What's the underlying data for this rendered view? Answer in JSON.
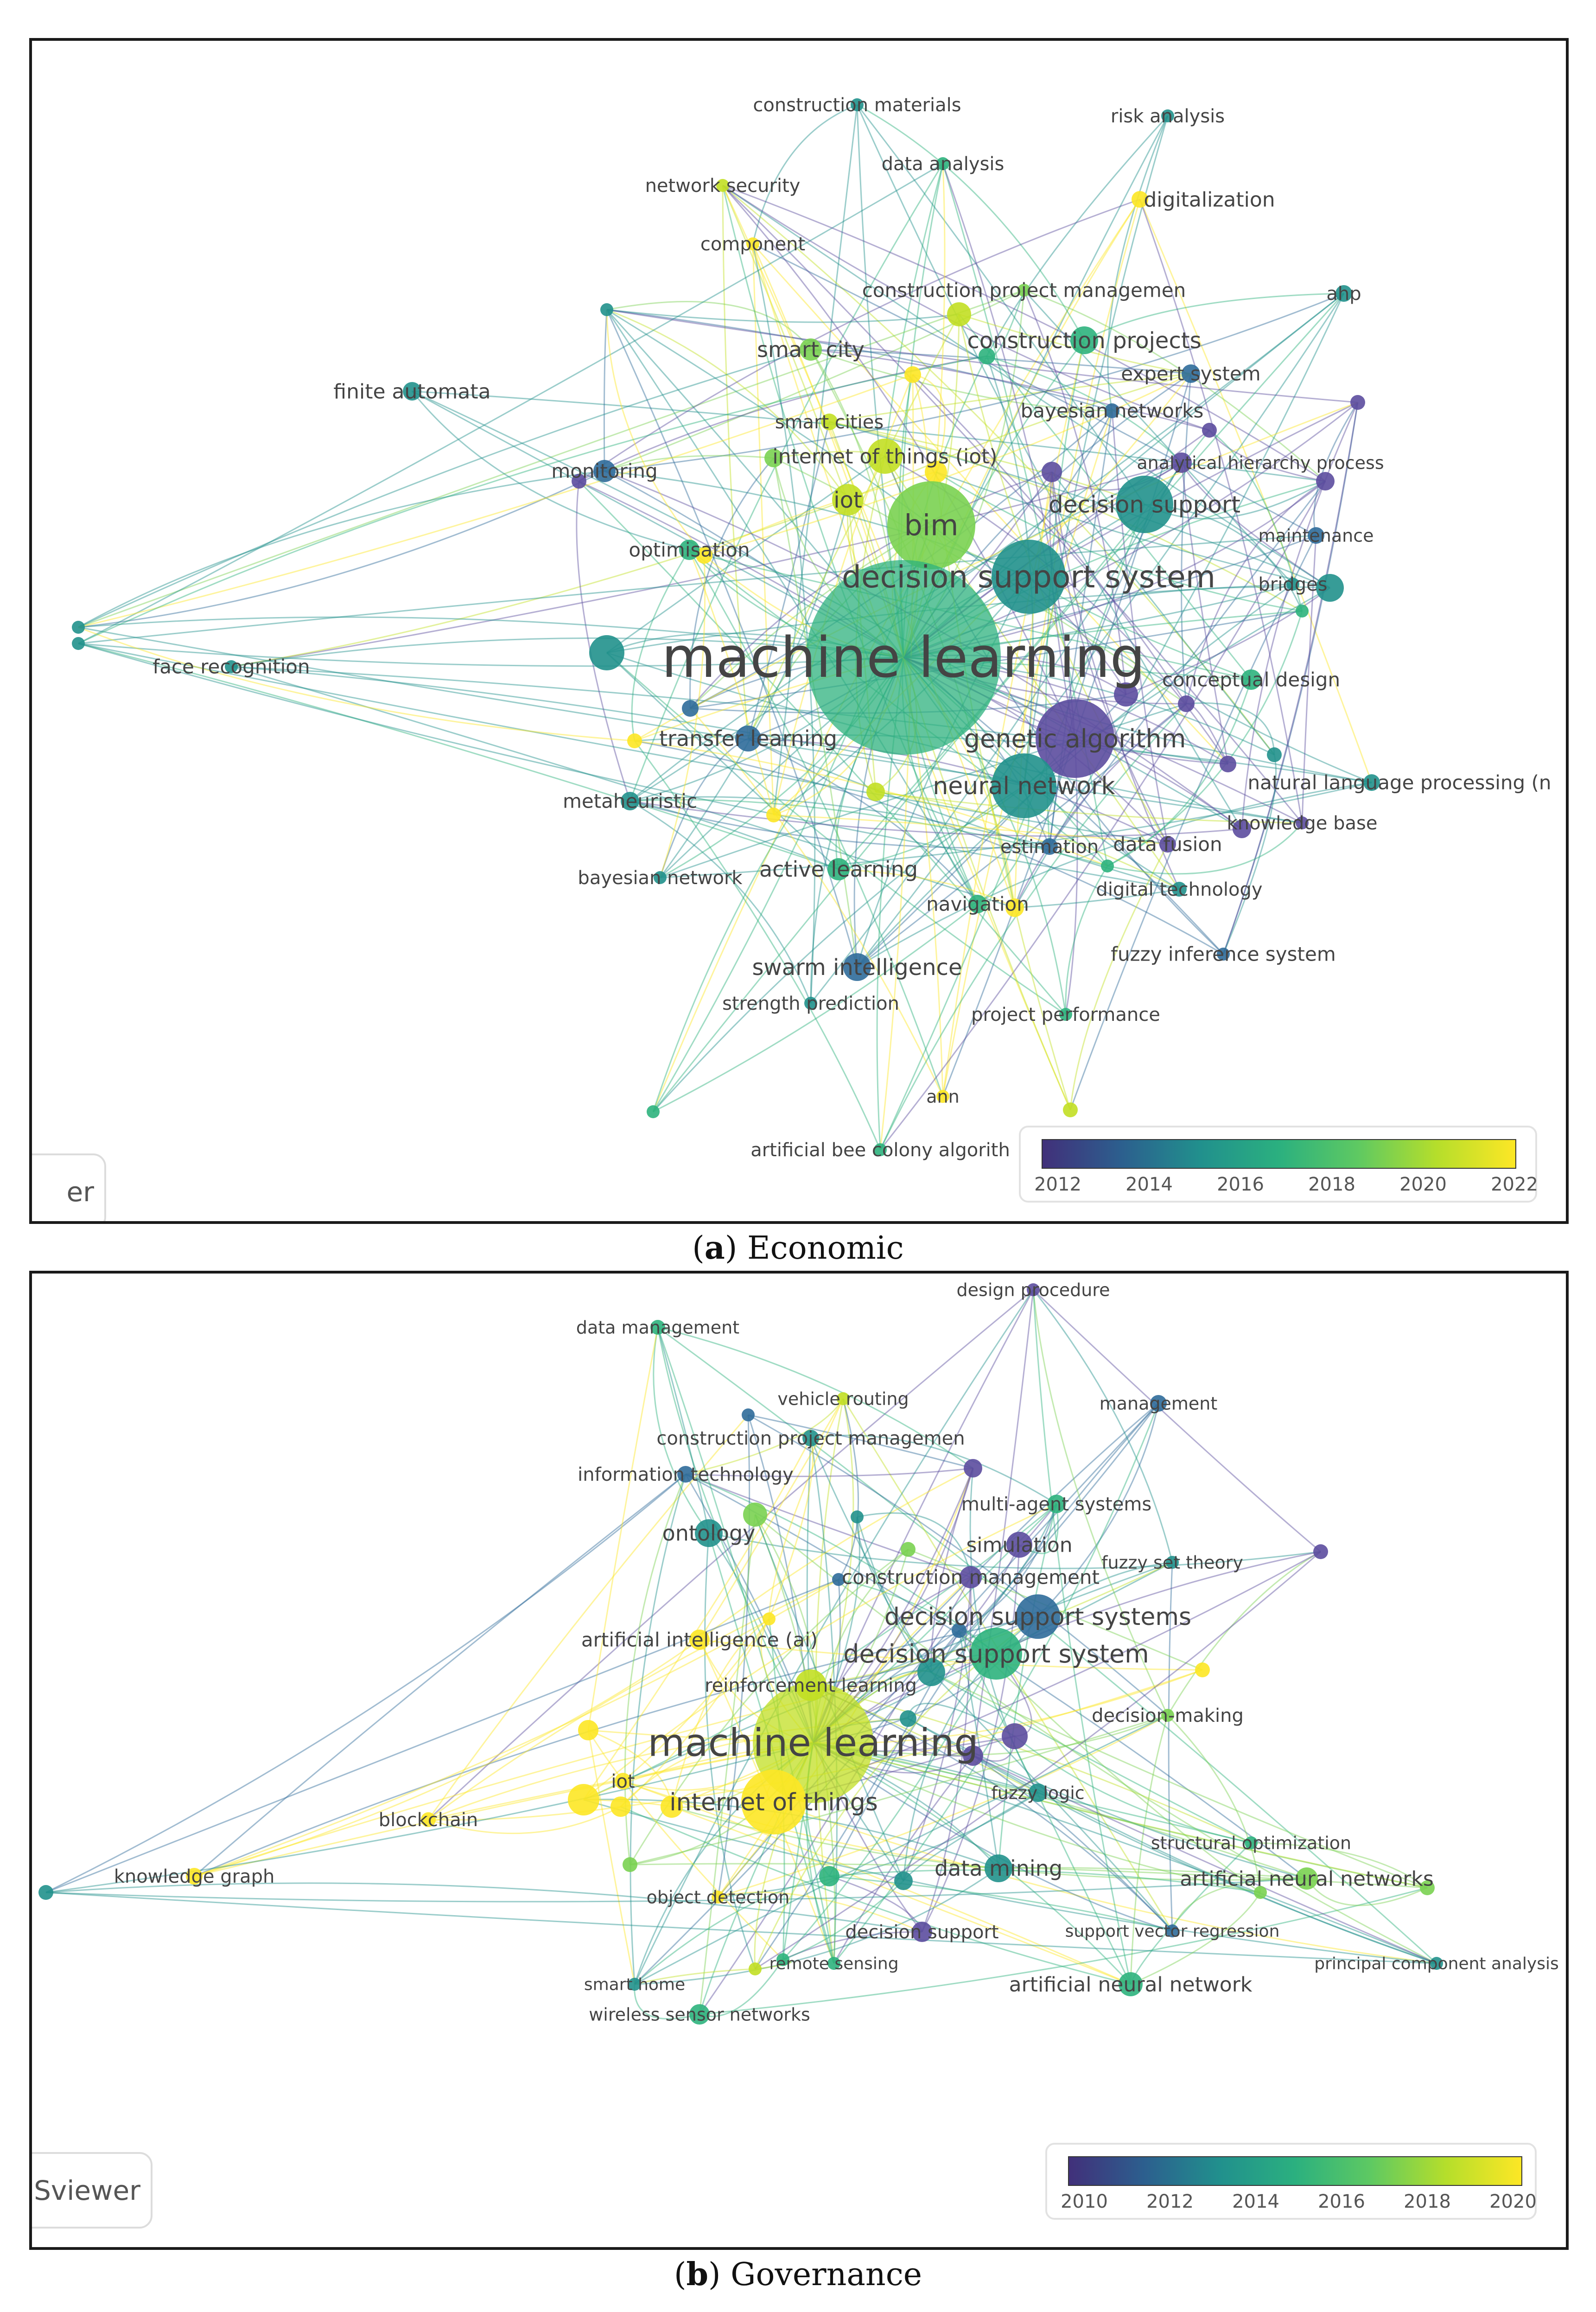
{
  "panels": [
    {
      "id": "a",
      "caption_letter": "a",
      "caption_text": ") Economic",
      "viewer_text": "er",
      "legend_ticks": [
        "2012",
        "2014",
        "2016",
        "2018",
        "2020",
        "2022"
      ],
      "labels": [
        "construction materials",
        "risk analysis",
        "data analysis",
        "network security",
        "digitalization",
        "component",
        "construction project managemen",
        "ahp",
        "smart city",
        "construction projects",
        "expert system",
        "finite automata",
        "smart cities",
        "bayesian networks",
        "internet of things (iot)",
        "analytical hierarchy process",
        "monitoring",
        "iot",
        "bim",
        "decision support",
        "maintenance",
        "optimisation",
        "decision support system",
        "bridges",
        "machine learning",
        "face recognition",
        "conceptual design",
        "transfer learning",
        "genetic algorithm",
        "neural network",
        "natural language processing (n",
        "metaheuristic",
        "knowledge base",
        "estimation",
        "data fusion",
        "bayesian network",
        "active learning",
        "digital technology",
        "navigation",
        "fuzzy inference system",
        "swarm intelligence",
        "strength prediction",
        "project performance",
        "ann",
        "artificial bee colony algorith"
      ]
    },
    {
      "id": "b",
      "caption_letter": "b",
      "caption_text": ") Governance",
      "viewer_text": "Sviewer",
      "legend_ticks": [
        "2010",
        "2012",
        "2014",
        "2016",
        "2018",
        "2020"
      ],
      "labels": [
        "design procedure",
        "data management",
        "vehicle routing",
        "management",
        "construction project managemen",
        "information technology",
        "multi-agent systems",
        "ontology",
        "simulation",
        "fuzzy set theory",
        "construction management",
        "decision support systems",
        "artificial intelligence (ai)",
        "decision support system",
        "reinforcement learning",
        "decision-making",
        "machine learning",
        "iot",
        "fuzzy logic",
        "blockchain",
        "internet of things",
        "structural optimization",
        "data mining",
        "artificial neural networks",
        "knowledge graph",
        "object detection",
        "support vector regression",
        "decision support",
        "principal component analysis",
        "remote sensing",
        "smart home",
        "artificial neural network",
        "wireless sensor networks"
      ]
    }
  ],
  "colors": {
    "purple": "#5c4d9e",
    "blue": "#2f6b9a",
    "teal": "#21918c",
    "green": "#2db27d",
    "lightgreen": "#7ad151",
    "yellowgreen": "#c2df23",
    "yellow": "#fde725"
  }
}
